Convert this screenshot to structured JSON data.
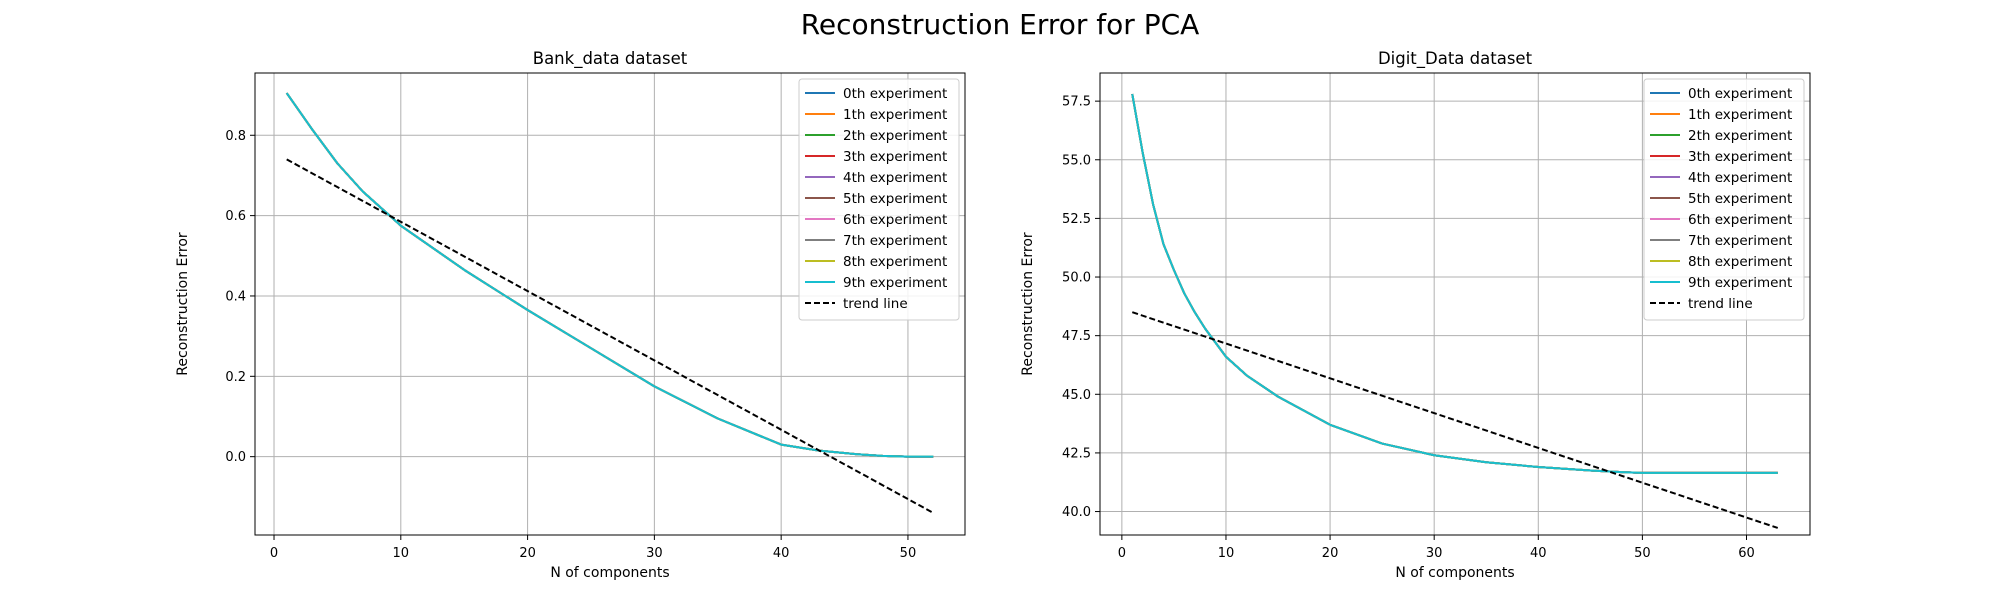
{
  "figure": {
    "title": "Reconstruction Error for PCA"
  },
  "chart_data": [
    {
      "type": "line",
      "title": "Bank_data dataset",
      "xlabel": "N of components",
      "ylabel": "Reconstruction Error",
      "xlim": [
        -1.5,
        54.5
      ],
      "ylim": [
        -0.195,
        0.955
      ],
      "xticks": [
        0,
        10,
        20,
        30,
        40,
        50
      ],
      "yticks": [
        0.0,
        0.2,
        0.4,
        0.6,
        0.8
      ],
      "ytick_decimals": 1,
      "grid": true,
      "legend_position": "top-right",
      "series_colors": [
        "#1f77b4",
        "#ff7f0e",
        "#2ca02c",
        "#d62728",
        "#9467bd",
        "#8c564b",
        "#e377c2",
        "#7f7f7f",
        "#bcbd22",
        "#17becf"
      ],
      "series": [
        {
          "name": "0th experiment",
          "x": [
            1,
            3,
            5,
            7,
            10,
            15,
            20,
            25,
            30,
            35,
            40,
            43,
            46,
            48,
            50,
            52
          ],
          "y": [
            0.905,
            0.815,
            0.73,
            0.66,
            0.575,
            0.465,
            0.365,
            0.27,
            0.175,
            0.095,
            0.03,
            0.015,
            0.006,
            0.002,
            0.0,
            0.0
          ]
        },
        {
          "name": "1th experiment",
          "x": [
            1,
            3,
            5,
            7,
            10,
            15,
            20,
            25,
            30,
            35,
            40,
            43,
            46,
            48,
            50,
            52
          ],
          "y": [
            0.905,
            0.815,
            0.73,
            0.66,
            0.575,
            0.465,
            0.365,
            0.27,
            0.175,
            0.095,
            0.03,
            0.015,
            0.006,
            0.002,
            0.0,
            0.0
          ]
        },
        {
          "name": "2th experiment",
          "x": [
            1,
            3,
            5,
            7,
            10,
            15,
            20,
            25,
            30,
            35,
            40,
            43,
            46,
            48,
            50,
            52
          ],
          "y": [
            0.905,
            0.815,
            0.73,
            0.66,
            0.575,
            0.465,
            0.365,
            0.27,
            0.175,
            0.095,
            0.03,
            0.015,
            0.006,
            0.002,
            0.0,
            0.0
          ]
        },
        {
          "name": "3th experiment",
          "x": [
            1,
            3,
            5,
            7,
            10,
            15,
            20,
            25,
            30,
            35,
            40,
            43,
            46,
            48,
            50,
            52
          ],
          "y": [
            0.905,
            0.815,
            0.73,
            0.66,
            0.575,
            0.465,
            0.365,
            0.27,
            0.175,
            0.095,
            0.03,
            0.015,
            0.006,
            0.002,
            0.0,
            0.0
          ]
        },
        {
          "name": "4th experiment",
          "x": [
            1,
            3,
            5,
            7,
            10,
            15,
            20,
            25,
            30,
            35,
            40,
            43,
            46,
            48,
            50,
            52
          ],
          "y": [
            0.905,
            0.815,
            0.73,
            0.66,
            0.575,
            0.465,
            0.365,
            0.27,
            0.175,
            0.095,
            0.03,
            0.015,
            0.006,
            0.002,
            0.0,
            0.0
          ]
        },
        {
          "name": "5th experiment",
          "x": [
            1,
            3,
            5,
            7,
            10,
            15,
            20,
            25,
            30,
            35,
            40,
            43,
            46,
            48,
            50,
            52
          ],
          "y": [
            0.905,
            0.815,
            0.73,
            0.66,
            0.575,
            0.465,
            0.365,
            0.27,
            0.175,
            0.095,
            0.03,
            0.015,
            0.006,
            0.002,
            0.0,
            0.0
          ]
        },
        {
          "name": "6th experiment",
          "x": [
            1,
            3,
            5,
            7,
            10,
            15,
            20,
            25,
            30,
            35,
            40,
            43,
            46,
            48,
            50,
            52
          ],
          "y": [
            0.905,
            0.815,
            0.73,
            0.66,
            0.575,
            0.465,
            0.365,
            0.27,
            0.175,
            0.095,
            0.03,
            0.015,
            0.006,
            0.002,
            0.0,
            0.0
          ]
        },
        {
          "name": "7th experiment",
          "x": [
            1,
            3,
            5,
            7,
            10,
            15,
            20,
            25,
            30,
            35,
            40,
            43,
            46,
            48,
            50,
            52
          ],
          "y": [
            0.905,
            0.815,
            0.73,
            0.66,
            0.575,
            0.465,
            0.365,
            0.27,
            0.175,
            0.095,
            0.03,
            0.015,
            0.006,
            0.002,
            0.0,
            0.0
          ]
        },
        {
          "name": "8th experiment",
          "x": [
            1,
            3,
            5,
            7,
            10,
            15,
            20,
            25,
            30,
            35,
            40,
            43,
            46,
            48,
            50,
            52
          ],
          "y": [
            0.905,
            0.815,
            0.73,
            0.66,
            0.575,
            0.465,
            0.365,
            0.27,
            0.175,
            0.095,
            0.03,
            0.015,
            0.006,
            0.002,
            0.0,
            0.0
          ]
        },
        {
          "name": "9th experiment",
          "x": [
            1,
            3,
            5,
            7,
            10,
            15,
            20,
            25,
            30,
            35,
            40,
            43,
            46,
            48,
            50,
            52
          ],
          "y": [
            0.905,
            0.815,
            0.73,
            0.66,
            0.575,
            0.465,
            0.365,
            0.27,
            0.175,
            0.095,
            0.03,
            0.015,
            0.006,
            0.002,
            0.0,
            0.0
          ]
        }
      ],
      "trend_line": {
        "name": "trend line",
        "x": [
          1,
          52
        ],
        "y": [
          0.74,
          -0.14
        ],
        "color": "#000000"
      }
    },
    {
      "type": "line",
      "title": "Digit_Data dataset",
      "xlabel": "N of components",
      "ylabel": "Reconstruction Error",
      "xlim": [
        -2.1,
        66.1
      ],
      "ylim": [
        39.0,
        58.7
      ],
      "xticks": [
        0,
        10,
        20,
        30,
        40,
        50,
        60
      ],
      "yticks": [
        40.0,
        42.5,
        45.0,
        47.5,
        50.0,
        52.5,
        55.0,
        57.5
      ],
      "ytick_decimals": 1,
      "grid": true,
      "legend_position": "top-right",
      "series_colors": [
        "#1f77b4",
        "#ff7f0e",
        "#2ca02c",
        "#d62728",
        "#9467bd",
        "#8c564b",
        "#e377c2",
        "#7f7f7f",
        "#bcbd22",
        "#17becf"
      ],
      "series": [
        {
          "name": "0th experiment",
          "x": [
            1,
            2,
            3,
            4,
            5,
            6,
            7,
            8,
            10,
            12,
            15,
            20,
            25,
            30,
            35,
            40,
            45,
            48,
            50,
            55,
            60,
            63
          ],
          "y": [
            57.8,
            55.3,
            53.1,
            51.4,
            50.3,
            49.3,
            48.5,
            47.8,
            46.6,
            45.8,
            44.9,
            43.7,
            42.9,
            42.4,
            42.1,
            41.9,
            41.75,
            41.68,
            41.65,
            41.65,
            41.65,
            41.65
          ]
        },
        {
          "name": "1th experiment",
          "x": [
            1,
            2,
            3,
            4,
            5,
            6,
            7,
            8,
            10,
            12,
            15,
            20,
            25,
            30,
            35,
            40,
            45,
            48,
            50,
            55,
            60,
            63
          ],
          "y": [
            57.8,
            55.3,
            53.1,
            51.4,
            50.3,
            49.3,
            48.5,
            47.8,
            46.6,
            45.8,
            44.9,
            43.7,
            42.9,
            42.4,
            42.1,
            41.9,
            41.75,
            41.68,
            41.65,
            41.65,
            41.65,
            41.65
          ]
        },
        {
          "name": "2th experiment",
          "x": [
            1,
            2,
            3,
            4,
            5,
            6,
            7,
            8,
            10,
            12,
            15,
            20,
            25,
            30,
            35,
            40,
            45,
            48,
            50,
            55,
            60,
            63
          ],
          "y": [
            57.8,
            55.3,
            53.1,
            51.4,
            50.3,
            49.3,
            48.5,
            47.8,
            46.6,
            45.8,
            44.9,
            43.7,
            42.9,
            42.4,
            42.1,
            41.9,
            41.75,
            41.68,
            41.65,
            41.65,
            41.65,
            41.65
          ]
        },
        {
          "name": "3th experiment",
          "x": [
            1,
            2,
            3,
            4,
            5,
            6,
            7,
            8,
            10,
            12,
            15,
            20,
            25,
            30,
            35,
            40,
            45,
            48,
            50,
            55,
            60,
            63
          ],
          "y": [
            57.8,
            55.3,
            53.1,
            51.4,
            50.3,
            49.3,
            48.5,
            47.8,
            46.6,
            45.8,
            44.9,
            43.7,
            42.9,
            42.4,
            42.1,
            41.9,
            41.75,
            41.68,
            41.65,
            41.65,
            41.65,
            41.65
          ]
        },
        {
          "name": "4th experiment",
          "x": [
            1,
            2,
            3,
            4,
            5,
            6,
            7,
            8,
            10,
            12,
            15,
            20,
            25,
            30,
            35,
            40,
            45,
            48,
            50,
            55,
            60,
            63
          ],
          "y": [
            57.8,
            55.3,
            53.1,
            51.4,
            50.3,
            49.3,
            48.5,
            47.8,
            46.6,
            45.8,
            44.9,
            43.7,
            42.9,
            42.4,
            42.1,
            41.9,
            41.75,
            41.68,
            41.65,
            41.65,
            41.65,
            41.65
          ]
        },
        {
          "name": "5th experiment",
          "x": [
            1,
            2,
            3,
            4,
            5,
            6,
            7,
            8,
            10,
            12,
            15,
            20,
            25,
            30,
            35,
            40,
            45,
            48,
            50,
            55,
            60,
            63
          ],
          "y": [
            57.8,
            55.3,
            53.1,
            51.4,
            50.3,
            49.3,
            48.5,
            47.8,
            46.6,
            45.8,
            44.9,
            43.7,
            42.9,
            42.4,
            42.1,
            41.9,
            41.75,
            41.68,
            41.65,
            41.65,
            41.65,
            41.65
          ]
        },
        {
          "name": "6th experiment",
          "x": [
            1,
            2,
            3,
            4,
            5,
            6,
            7,
            8,
            10,
            12,
            15,
            20,
            25,
            30,
            35,
            40,
            45,
            48,
            50,
            55,
            60,
            63
          ],
          "y": [
            57.8,
            55.3,
            53.1,
            51.4,
            50.3,
            49.3,
            48.5,
            47.8,
            46.6,
            45.8,
            44.9,
            43.7,
            42.9,
            42.4,
            42.1,
            41.9,
            41.75,
            41.68,
            41.65,
            41.65,
            41.65,
            41.65
          ]
        },
        {
          "name": "7th experiment",
          "x": [
            1,
            2,
            3,
            4,
            5,
            6,
            7,
            8,
            10,
            12,
            15,
            20,
            25,
            30,
            35,
            40,
            45,
            48,
            50,
            55,
            60,
            63
          ],
          "y": [
            57.8,
            55.3,
            53.1,
            51.4,
            50.3,
            49.3,
            48.5,
            47.8,
            46.6,
            45.8,
            44.9,
            43.7,
            42.9,
            42.4,
            42.1,
            41.9,
            41.75,
            41.68,
            41.65,
            41.65,
            41.65,
            41.65
          ]
        },
        {
          "name": "8th experiment",
          "x": [
            1,
            2,
            3,
            4,
            5,
            6,
            7,
            8,
            10,
            12,
            15,
            20,
            25,
            30,
            35,
            40,
            45,
            48,
            50,
            55,
            60,
            63
          ],
          "y": [
            57.8,
            55.3,
            53.1,
            51.4,
            50.3,
            49.3,
            48.5,
            47.8,
            46.6,
            45.8,
            44.9,
            43.7,
            42.9,
            42.4,
            42.1,
            41.9,
            41.75,
            41.68,
            41.65,
            41.65,
            41.65,
            41.65
          ]
        },
        {
          "name": "9th experiment",
          "x": [
            1,
            2,
            3,
            4,
            5,
            6,
            7,
            8,
            10,
            12,
            15,
            20,
            25,
            30,
            35,
            40,
            45,
            48,
            50,
            55,
            60,
            63
          ],
          "y": [
            57.8,
            55.3,
            53.1,
            51.4,
            50.3,
            49.3,
            48.5,
            47.8,
            46.6,
            45.8,
            44.9,
            43.7,
            42.9,
            42.4,
            42.1,
            41.9,
            41.75,
            41.68,
            41.65,
            41.65,
            41.65,
            41.65
          ]
        }
      ],
      "trend_line": {
        "name": "trend line",
        "x": [
          1,
          63
        ],
        "y": [
          48.5,
          39.3
        ],
        "color": "#000000"
      }
    }
  ]
}
